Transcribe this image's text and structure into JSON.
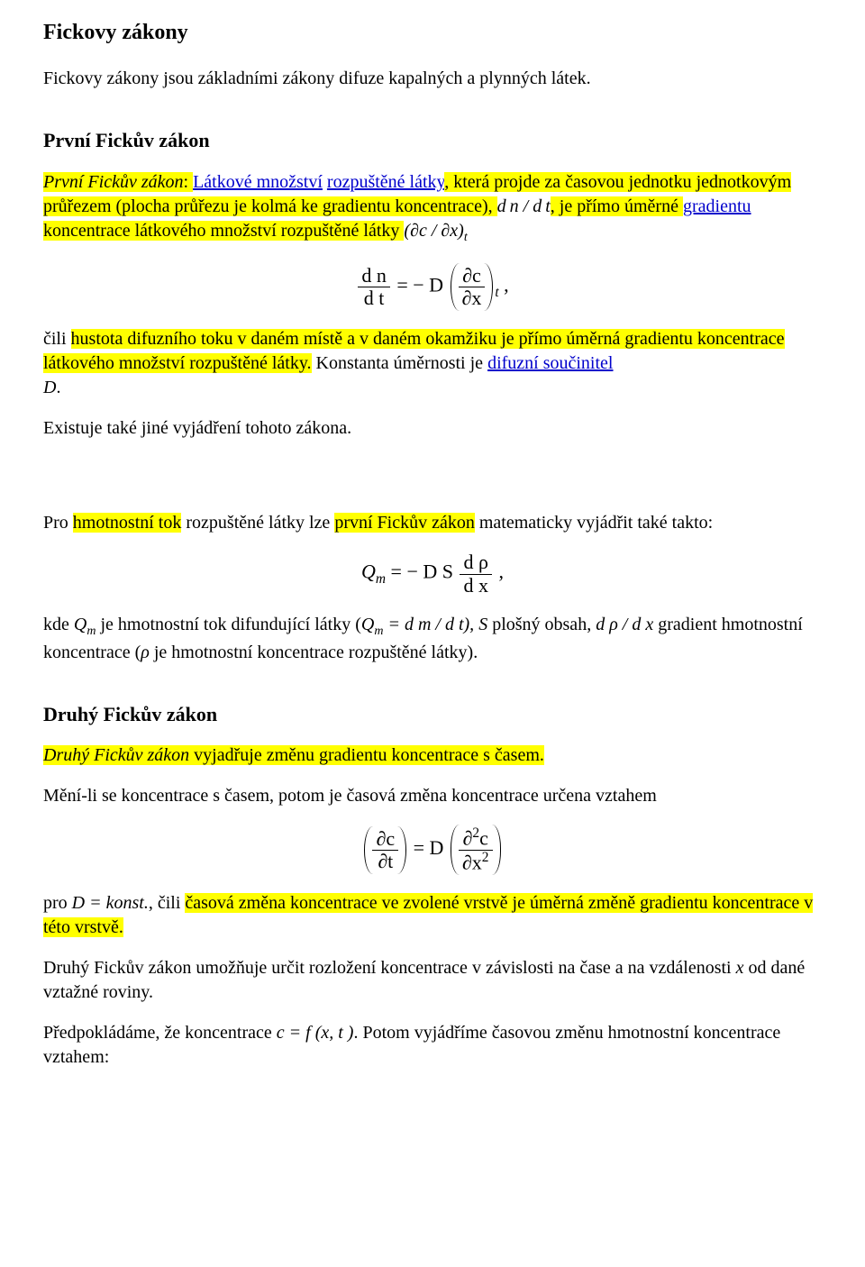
{
  "title": "Fickovy zákony",
  "intro": "Fickovy zákony jsou základními zákony difuze kapalných a plynných látek.",
  "first_law": {
    "heading": "První Fickův zákon",
    "p1_a": "První Fickův zákon",
    "p1_b": ": ",
    "p1_link1": "Látkové množství",
    "p1_c": " ",
    "p1_link2": "rozpuštěné látky",
    "p1_d": ", která projde za časovou jednotku jednotkovým průřezem (plocha průřezu je kolmá ke gradientu koncentrace), ",
    "p1_e": ", je přímo úměrné ",
    "p1_link3": "gradientu",
    "p1_f": " koncentrace látkového množství rozpuštěné látky ",
    "dn_dt": "d n / d t",
    "dc_dx_t": "(∂c / ∂x)",
    "dc_dx_sub": "t",
    "eq1_num": "d n",
    "eq1_den": "d t",
    "eq1_mid": " = − D ",
    "eq1_paren_num": "∂c",
    "eq1_paren_den": "∂x",
    "eq1_sub": "t",
    "eq1_comma": ",",
    "p2_a": "čili ",
    "p2_b": "hustota difuzního toku v daném místě a v daném okamžiku je přímo úměrná gradientu koncentrace látkového množství rozpuštěné látky.",
    "p2_c": " Konstanta úměrnosti je ",
    "p2_link": "difuzní součinitel",
    "p2_d": "D",
    "p2_e": ".",
    "p3": "Existuje také jiné vyjádření tohoto zákona.",
    "p4_a": "Pro ",
    "p4_b": "hmotnostní tok",
    "p4_c": " rozpuštěné látky lze ",
    "p4_d": "první Fickův zákon",
    "p4_e": " matematicky vyjádřit také takto:",
    "eq2_lhs": "Q",
    "eq2_lhs_sub": "m",
    "eq2_mid": " = − D S ",
    "eq2_num": "d ρ",
    "eq2_den": "d x",
    "eq2_comma": ",",
    "p5_a": "kde ",
    "p5_qm": "Q",
    "p5_qm_sub": "m",
    "p5_b": " je hmotnostní tok difundující látky (",
    "p5_qm2": "Q",
    "p5_qm2_sub": "m",
    "p5_c": " = d m / d t), ",
    "p5_s": "S",
    "p5_d": " plošný obsah, ",
    "p5_grad": "d ρ / d x",
    "p5_e": " gradient hmotnostní koncentrace (",
    "p5_rho": "ρ",
    "p5_f": " je hmotnostní koncentrace rozpuštěné látky)."
  },
  "second_law": {
    "heading": "Druhý Fickův zákon",
    "p1_a": "Druhý Fickův zákon",
    "p1_b": " vyjadřuje změnu gradientu koncentrace s časem.",
    "p2": "Mění-li se koncentrace s časem, potom je časová změna koncentrace určena vztahem",
    "eq3_lnum": "∂c",
    "eq3_lden": "∂t",
    "eq3_mid": " = D ",
    "eq3_rnum_a": "∂",
    "eq3_rnum_exp": "2",
    "eq3_rnum_b": "c",
    "eq3_rden_a": "∂x",
    "eq3_rden_exp": "2",
    "p3_a": "pro ",
    "p3_b": "D = konst.",
    "p3_c": ", čili ",
    "p3_d": "časová změna koncentrace ve zvolené vrstvě je úměrná změně gradientu koncentrace v této vrstvě.",
    "p4": "Druhý Fickův zákon umožňuje určit rozložení koncentrace v závislosti na čase a na vzdálenosti ",
    "p4_x": "x",
    "p4_b": " od dané vztažné roviny.",
    "p5_a": "Předpokládáme, že koncentrace ",
    "p5_eq": "c = f (x, t )",
    "p5_b": ". Potom vyjádříme časovou změnu hmotnostní koncentrace  vztahem:"
  }
}
